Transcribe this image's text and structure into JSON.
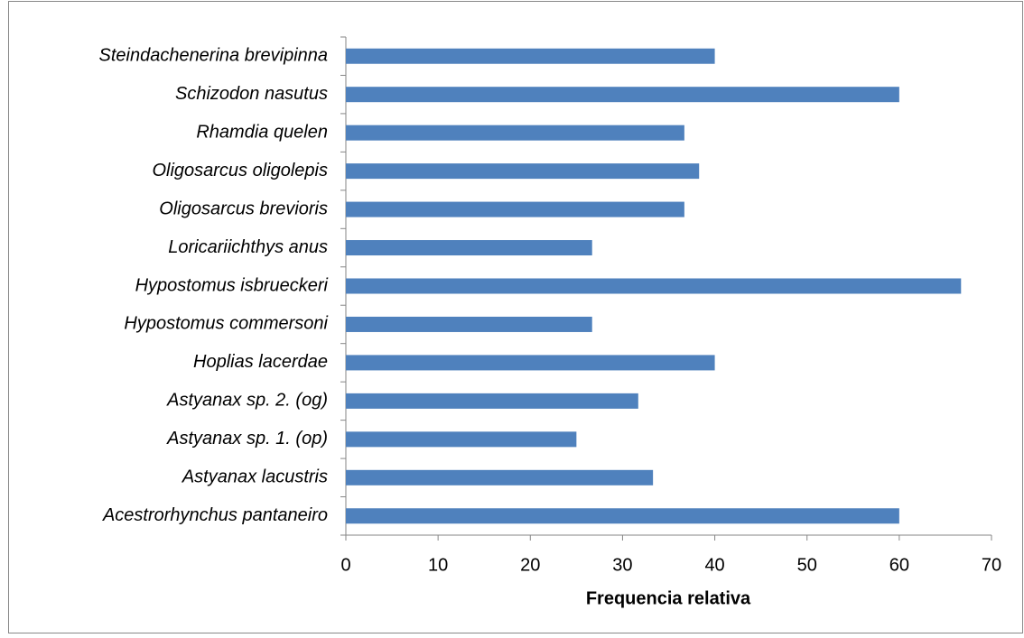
{
  "chart_data": {
    "type": "barh",
    "categories": [
      "Steindachenerina brevipinna",
      "Schizodon nasutus",
      "Rhamdia quelen",
      "Oligosarcus oligolepis",
      "Oligosarcus brevioris",
      "Loricariichthys anus",
      "Hypostomus isbrueckeri",
      "Hypostomus commersoni",
      "Hoplias lacerdae",
      "Astyanax sp. 2. (og)",
      "Astyanax sp. 1. (op)",
      "Astyanax lacustris",
      "Acestrorhynchus pantaneiro"
    ],
    "values": [
      40,
      60,
      36.7,
      38.3,
      36.7,
      26.7,
      66.7,
      26.7,
      40,
      31.7,
      25,
      33.3,
      60
    ],
    "color": "#4f81bd",
    "x_label": "Frequencia relativa",
    "xlim": [
      0,
      70
    ],
    "xticks": [
      0,
      10,
      20,
      30,
      40,
      50,
      60,
      70
    ],
    "grid": false
  }
}
